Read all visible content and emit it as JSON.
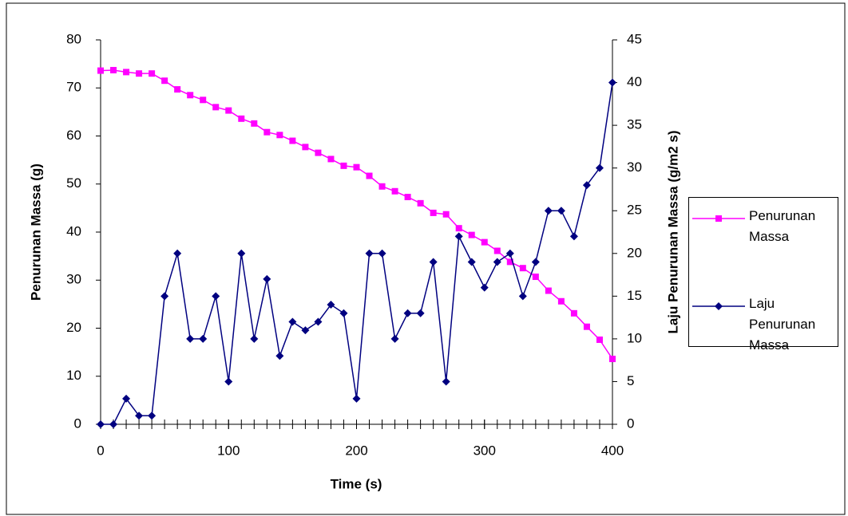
{
  "chart_data": {
    "type": "line",
    "x_label": "Time (s)",
    "y_label": "Penurunan Massa (g)",
    "y2_label": "Laju Penurunan Massa (g/m2 s)",
    "x": [
      0,
      10,
      20,
      30,
      40,
      50,
      60,
      70,
      80,
      90,
      100,
      110,
      120,
      130,
      140,
      150,
      160,
      170,
      180,
      190,
      200,
      210,
      220,
      230,
      240,
      250,
      260,
      270,
      280,
      290,
      300,
      310,
      320,
      330,
      340,
      350,
      360,
      370,
      380,
      390,
      400
    ],
    "series": [
      {
        "name": "Penurunan Massa",
        "color": "#ff00ff",
        "marker": "square",
        "axis": "y",
        "values": [
          73.6,
          73.7,
          73.3,
          73.0,
          73.0,
          71.5,
          69.7,
          68.5,
          67.5,
          66.0,
          65.3,
          63.6,
          62.6,
          60.8,
          60.2,
          59.0,
          57.7,
          56.5,
          55.2,
          53.8,
          53.5,
          51.7,
          49.5,
          48.5,
          47.3,
          46.0,
          44.0,
          43.7,
          40.8,
          39.4,
          37.9,
          36.1,
          33.8,
          32.5,
          30.7,
          27.8,
          25.6,
          23.1,
          20.3,
          17.6,
          13.6
        ]
      },
      {
        "name": "Laju Penurunan Massa",
        "color": "#000080",
        "marker": "diamond",
        "axis": "y2",
        "values": [
          0,
          0,
          3,
          1,
          1,
          15,
          20,
          10,
          10,
          15,
          5,
          20,
          10,
          17,
          8,
          12,
          11,
          12,
          14,
          13,
          3,
          20,
          20,
          10,
          13,
          13,
          19,
          5,
          22,
          19,
          16,
          19,
          20,
          15,
          19,
          25,
          25,
          22,
          28,
          30,
          40
        ]
      }
    ],
    "xlim": [
      0,
      400
    ],
    "xticks": [
      0,
      100,
      200,
      300,
      400
    ],
    "ylim": [
      0,
      80
    ],
    "yticks": [
      0,
      10,
      20,
      30,
      40,
      50,
      60,
      70,
      80
    ],
    "y2lim": [
      0,
      45
    ],
    "y2ticks": [
      0,
      5,
      10,
      15,
      20,
      25,
      30,
      35,
      40,
      45
    ],
    "grid": false,
    "legend": "right"
  }
}
